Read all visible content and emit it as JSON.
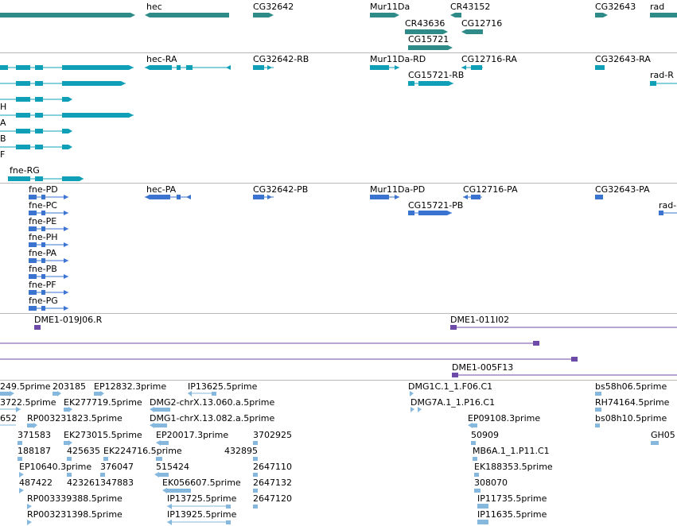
{
  "colors": {
    "gene": "#2e8b87",
    "transcript": "#0fa0b8",
    "protein": "#3a74d0",
    "bac": "#6e4aa8",
    "est": "#86b8de",
    "divider": "#b9b9b9"
  },
  "tracks": {
    "gene": {
      "labels": [
        "hec",
        "CG32642",
        "Mur11Da",
        "CR43152",
        "CG32643",
        "rad",
        "CR43636",
        "CG12716",
        "CG15721"
      ]
    },
    "transcript": {
      "labels": [
        "hec-RA",
        "CG32642-RB",
        "Mur11Da-RD",
        "CG12716-RA",
        "CG32643-RA",
        "rad-R",
        "CG15721-RB",
        "H",
        "A",
        "B",
        "F",
        "fne-RG"
      ]
    },
    "protein": {
      "labels": [
        "fne-PD",
        "hec-PA",
        "CG32642-PB",
        "Mur11Da-PD",
        "CG12716-PA",
        "CG32643-PA",
        "CG15721-PB",
        "rad-",
        "fne-PC",
        "fne-PE",
        "fne-PH",
        "fne-PA",
        "fne-PB",
        "fne-PF",
        "fne-PG"
      ]
    },
    "bac": {
      "labels": [
        "DME1-019J06.R",
        "DME1-011I02",
        "DME1-005F13"
      ]
    },
    "est": {
      "labels": [
        "249.5prime",
        "203185",
        "EP12832.3prime",
        "IP13625.5prime",
        "DMG1C.1_1.F06.C1",
        "bs58h06.5prime",
        "3722.5prime",
        "EK277719.5prime",
        "DMG2-chrX.13.060.a.5prime",
        "DMG7A.1_1.P16.C1",
        "RH74164.5prime",
        "652",
        "RP003231823.5prime",
        "DMG1-chrX.13.082.a.5prime",
        "EP09108.3prime",
        "bs08h10.5prime",
        "371583",
        "EK273015.5prime",
        "EP20017.3prime",
        "3702925",
        "50909",
        "GH05",
        "188187",
        "425635",
        "EK224716.5prime",
        "432895",
        "MB6A.1_1.P11.C1",
        "EP10640.3prime",
        "376047",
        "515424",
        "2647110",
        "EK188353.5prime",
        "487422",
        "423261",
        "347883",
        "EK056607.5prime",
        "2647132",
        "308070",
        "RP003339388.5prime",
        "IP13725.5prime",
        "2647120",
        "IP11735.5prime",
        "RP003231398.5prime",
        "IP13925.5prime",
        "IP11635.5prime"
      ]
    }
  }
}
